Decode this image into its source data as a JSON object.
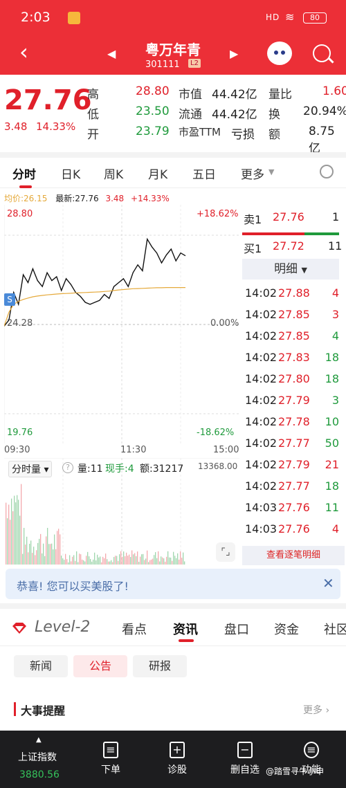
{
  "status": {
    "time": "2:03",
    "signal": "HD",
    "battery": "80"
  },
  "nav": {
    "stock_name": "粤万年青",
    "stock_code": "301111",
    "level_badge": "L2"
  },
  "quote": {
    "price": "27.76",
    "change": "3.48",
    "change_pct": "14.33%",
    "fields": [
      {
        "label": "高",
        "value": "28.80"
      },
      {
        "label": "低",
        "value": "23.50"
      },
      {
        "label": "开",
        "value": "23.79"
      },
      {
        "label": "市值",
        "value": "44.42亿"
      },
      {
        "label": "流通",
        "value": "44.42亿"
      },
      {
        "label": "市盈TTM",
        "value": "亏损"
      },
      {
        "label": "量比",
        "value": "1.60"
      },
      {
        "label": "换",
        "value": "20.94%"
      },
      {
        "label": "额",
        "value": "8.75亿"
      }
    ]
  },
  "tabs": [
    "分时",
    "日K",
    "周K",
    "月K",
    "五日",
    "更多"
  ],
  "info_line": {
    "avg": "均价:26.15",
    "latest": "最新:27.76",
    "chg": "3.48",
    "pct": "+14.33%"
  },
  "chart_labels": {
    "high": "28.80",
    "high_pct": "+18.62%",
    "base": "24.28",
    "base_pct": "0.00%",
    "low": "19.76",
    "low_pct": "-18.62%",
    "marker": "S"
  },
  "chart_data": {
    "type": "line",
    "x_ticks": [
      "09:30",
      "11:30",
      "15:00"
    ],
    "ylim": [
      19.76,
      28.8
    ],
    "series": [
      {
        "values": [
          24.2,
          24.5,
          25.9,
          25.3,
          26.8,
          26.4,
          27.1,
          26.5,
          26.2,
          26.9,
          26.5,
          26.7,
          26.0,
          26.6,
          26.3,
          25.9,
          25.7,
          25.4,
          25.3,
          25.4,
          25.5,
          25.8,
          25.6,
          26.2,
          26.4,
          26.6,
          26.2,
          26.9,
          27.3,
          27.0,
          28.6,
          28.2,
          27.9,
          27.4,
          27.8,
          28.1,
          27.5,
          27.9,
          27.76
        ]
      },
      {
        "values": [
          24.2,
          24.9,
          25.3,
          25.45,
          25.55,
          25.62,
          25.68,
          25.72,
          25.75,
          25.78,
          25.8,
          25.82,
          25.84,
          25.85,
          25.86,
          25.88,
          25.89,
          25.9,
          25.91,
          25.92,
          25.93,
          25.95,
          25.97,
          26.0,
          26.03,
          26.05,
          26.07,
          26.09,
          26.1,
          26.11,
          26.12,
          26.13,
          26.14,
          26.14,
          26.15,
          26.15,
          26.15,
          26.15,
          26.15
        ]
      }
    ]
  },
  "order_book": {
    "sell1": {
      "label": "卖1",
      "price": "27.76",
      "vol": "1"
    },
    "buy1": {
      "label": "买1",
      "price": "27.72",
      "vol": "11"
    },
    "detail_label": "明细",
    "trades": [
      {
        "time": "14:02",
        "price": "27.88",
        "vol": "4",
        "dir": "up"
      },
      {
        "time": "14:02",
        "price": "27.85",
        "vol": "3",
        "dir": "up"
      },
      {
        "time": "14:02",
        "price": "27.85",
        "vol": "4",
        "dir": "down"
      },
      {
        "time": "14:02",
        "price": "27.83",
        "vol": "18",
        "dir": "down"
      },
      {
        "time": "14:02",
        "price": "27.80",
        "vol": "18",
        "dir": "down"
      },
      {
        "time": "14:02",
        "price": "27.79",
        "vol": "3",
        "dir": "down"
      },
      {
        "time": "14:02",
        "price": "27.78",
        "vol": "10",
        "dir": "down"
      },
      {
        "time": "14:02",
        "price": "27.77",
        "vol": "50",
        "dir": "down"
      },
      {
        "time": "14:02",
        "price": "27.79",
        "vol": "21",
        "dir": "up"
      },
      {
        "time": "14:02",
        "price": "27.77",
        "vol": "18",
        "dir": "down"
      },
      {
        "time": "14:03",
        "price": "27.76",
        "vol": "11",
        "dir": "down"
      },
      {
        "time": "14:03",
        "price": "27.76",
        "vol": "4",
        "dir": "up"
      }
    ],
    "view_all": "查看逐笔明细"
  },
  "volume": {
    "dropdown": "分时量",
    "vol": "量:11",
    "hand": "现手:4",
    "amount": "额:31217",
    "max": "13368.00"
  },
  "banner": {
    "text": "恭喜! 您可以买美股了!"
  },
  "lower_tabs": {
    "brand": "Level-2",
    "items": [
      "看点",
      "资讯",
      "盘口",
      "资金",
      "社区"
    ],
    "active": "资讯"
  },
  "chips": {
    "items": [
      "新闻",
      "公告",
      "研报"
    ],
    "active": "公告"
  },
  "events": {
    "title": "大事提醒",
    "more": "更多 ›"
  },
  "bottom": {
    "index_name": "上证指数",
    "index_value": "3880.56",
    "items": [
      "下单",
      "诊股",
      "删自选",
      "功能"
    ]
  },
  "watermark": "@踏雪寻牛小申",
  "colors": {
    "brand_red": "#ec2f37",
    "up": "#e0202a",
    "down": "#1f9a3c",
    "avg_line": "#e5a93a"
  }
}
